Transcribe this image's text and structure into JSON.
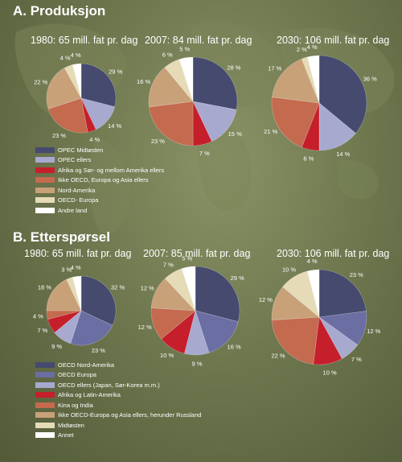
{
  "sections": [
    {
      "title": "A. Produksjon",
      "legend": [
        {
          "label": "OPEC Midtøsten",
          "color": "#454a6e"
        },
        {
          "label": "OPEC ellers",
          "color": "#a7a9cf"
        },
        {
          "label": "Afrika og Sør- og mellom Amerika ellers",
          "color": "#c41f2b"
        },
        {
          "label": "Ikke OECD, Europa og Asia ellers",
          "color": "#c46a4e"
        },
        {
          "label": "Nord-Amerika",
          "color": "#c8a179"
        },
        {
          "label": "OECD- Europa",
          "color": "#e5dbb6"
        },
        {
          "label": "Andre land",
          "color": "#ffffff"
        }
      ]
    },
    {
      "title": "B. Etterspørsel",
      "legend": [
        {
          "label": "OECD Nord-Amerika",
          "color": "#454a6e"
        },
        {
          "label": "OECD Europa",
          "color": "#6a6ea3"
        },
        {
          "label": "OECD ellers (Japan, Sør-Korea m.m.)",
          "color": "#a7a9cf"
        },
        {
          "label": "Afrika og Latin-Amerika",
          "color": "#c41f2b"
        },
        {
          "label": "Kina og India",
          "color": "#c46a4e"
        },
        {
          "label": "Ikke OECD-Europa og Asia ellers, herunder Russland",
          "color": "#c8a179"
        },
        {
          "label": "Midtøsten",
          "color": "#e5dbb6"
        },
        {
          "label": "Annet",
          "color": "#ffffff"
        }
      ]
    }
  ],
  "chart_data": [
    {
      "type": "pie",
      "title": "1980: 65 mill. fat pr. dag",
      "section": 0,
      "values": [
        29,
        14,
        4,
        23,
        22,
        4,
        4
      ],
      "labels": [
        "29 %",
        "14 %",
        "4 %",
        "23 %",
        "22 %",
        "4 %",
        "4 %"
      ]
    },
    {
      "type": "pie",
      "title": "2007: 84 mill. fat pr. dag",
      "section": 0,
      "values": [
        28,
        15,
        7,
        23,
        16,
        6,
        5
      ],
      "labels": [
        "28 %",
        "15 %",
        "7 %",
        "23 %",
        "16 %",
        "6 %",
        "5 %"
      ]
    },
    {
      "type": "pie",
      "title": "2030: 106 mill. fat pr. dag",
      "section": 0,
      "values": [
        36,
        14,
        6,
        21,
        17,
        2,
        4
      ],
      "labels": [
        "36 %",
        "14 %",
        "6 %",
        "21 %",
        "17 %",
        "2 %",
        "4 %"
      ]
    },
    {
      "type": "pie",
      "title": "1980: 65 mill. fat pr. dag",
      "section": 1,
      "values": [
        32,
        23,
        9,
        7,
        4,
        18,
        3,
        4
      ],
      "labels": [
        "32 %",
        "23 %",
        "9 %",
        "7 %",
        "4 %",
        "18 %",
        "3 %",
        "4 %"
      ]
    },
    {
      "type": "pie",
      "title": "2007: 85 mill. fat pr. dag",
      "section": 1,
      "values": [
        29,
        16,
        9,
        10,
        12,
        12,
        7,
        5
      ],
      "labels": [
        "29 %",
        "16 %",
        "9 %",
        "10 %",
        "12 %",
        "12 %",
        "7 %",
        "5 %"
      ]
    },
    {
      "type": "pie",
      "title": "2030: 106 mill. fat pr. dag",
      "section": 1,
      "values": [
        23,
        12,
        7,
        10,
        22,
        12,
        10,
        4
      ],
      "labels": [
        "23 %",
        "12 %",
        "7 %",
        "10 %",
        "22 %",
        "12 %",
        "10 %",
        "4 %"
      ]
    }
  ]
}
